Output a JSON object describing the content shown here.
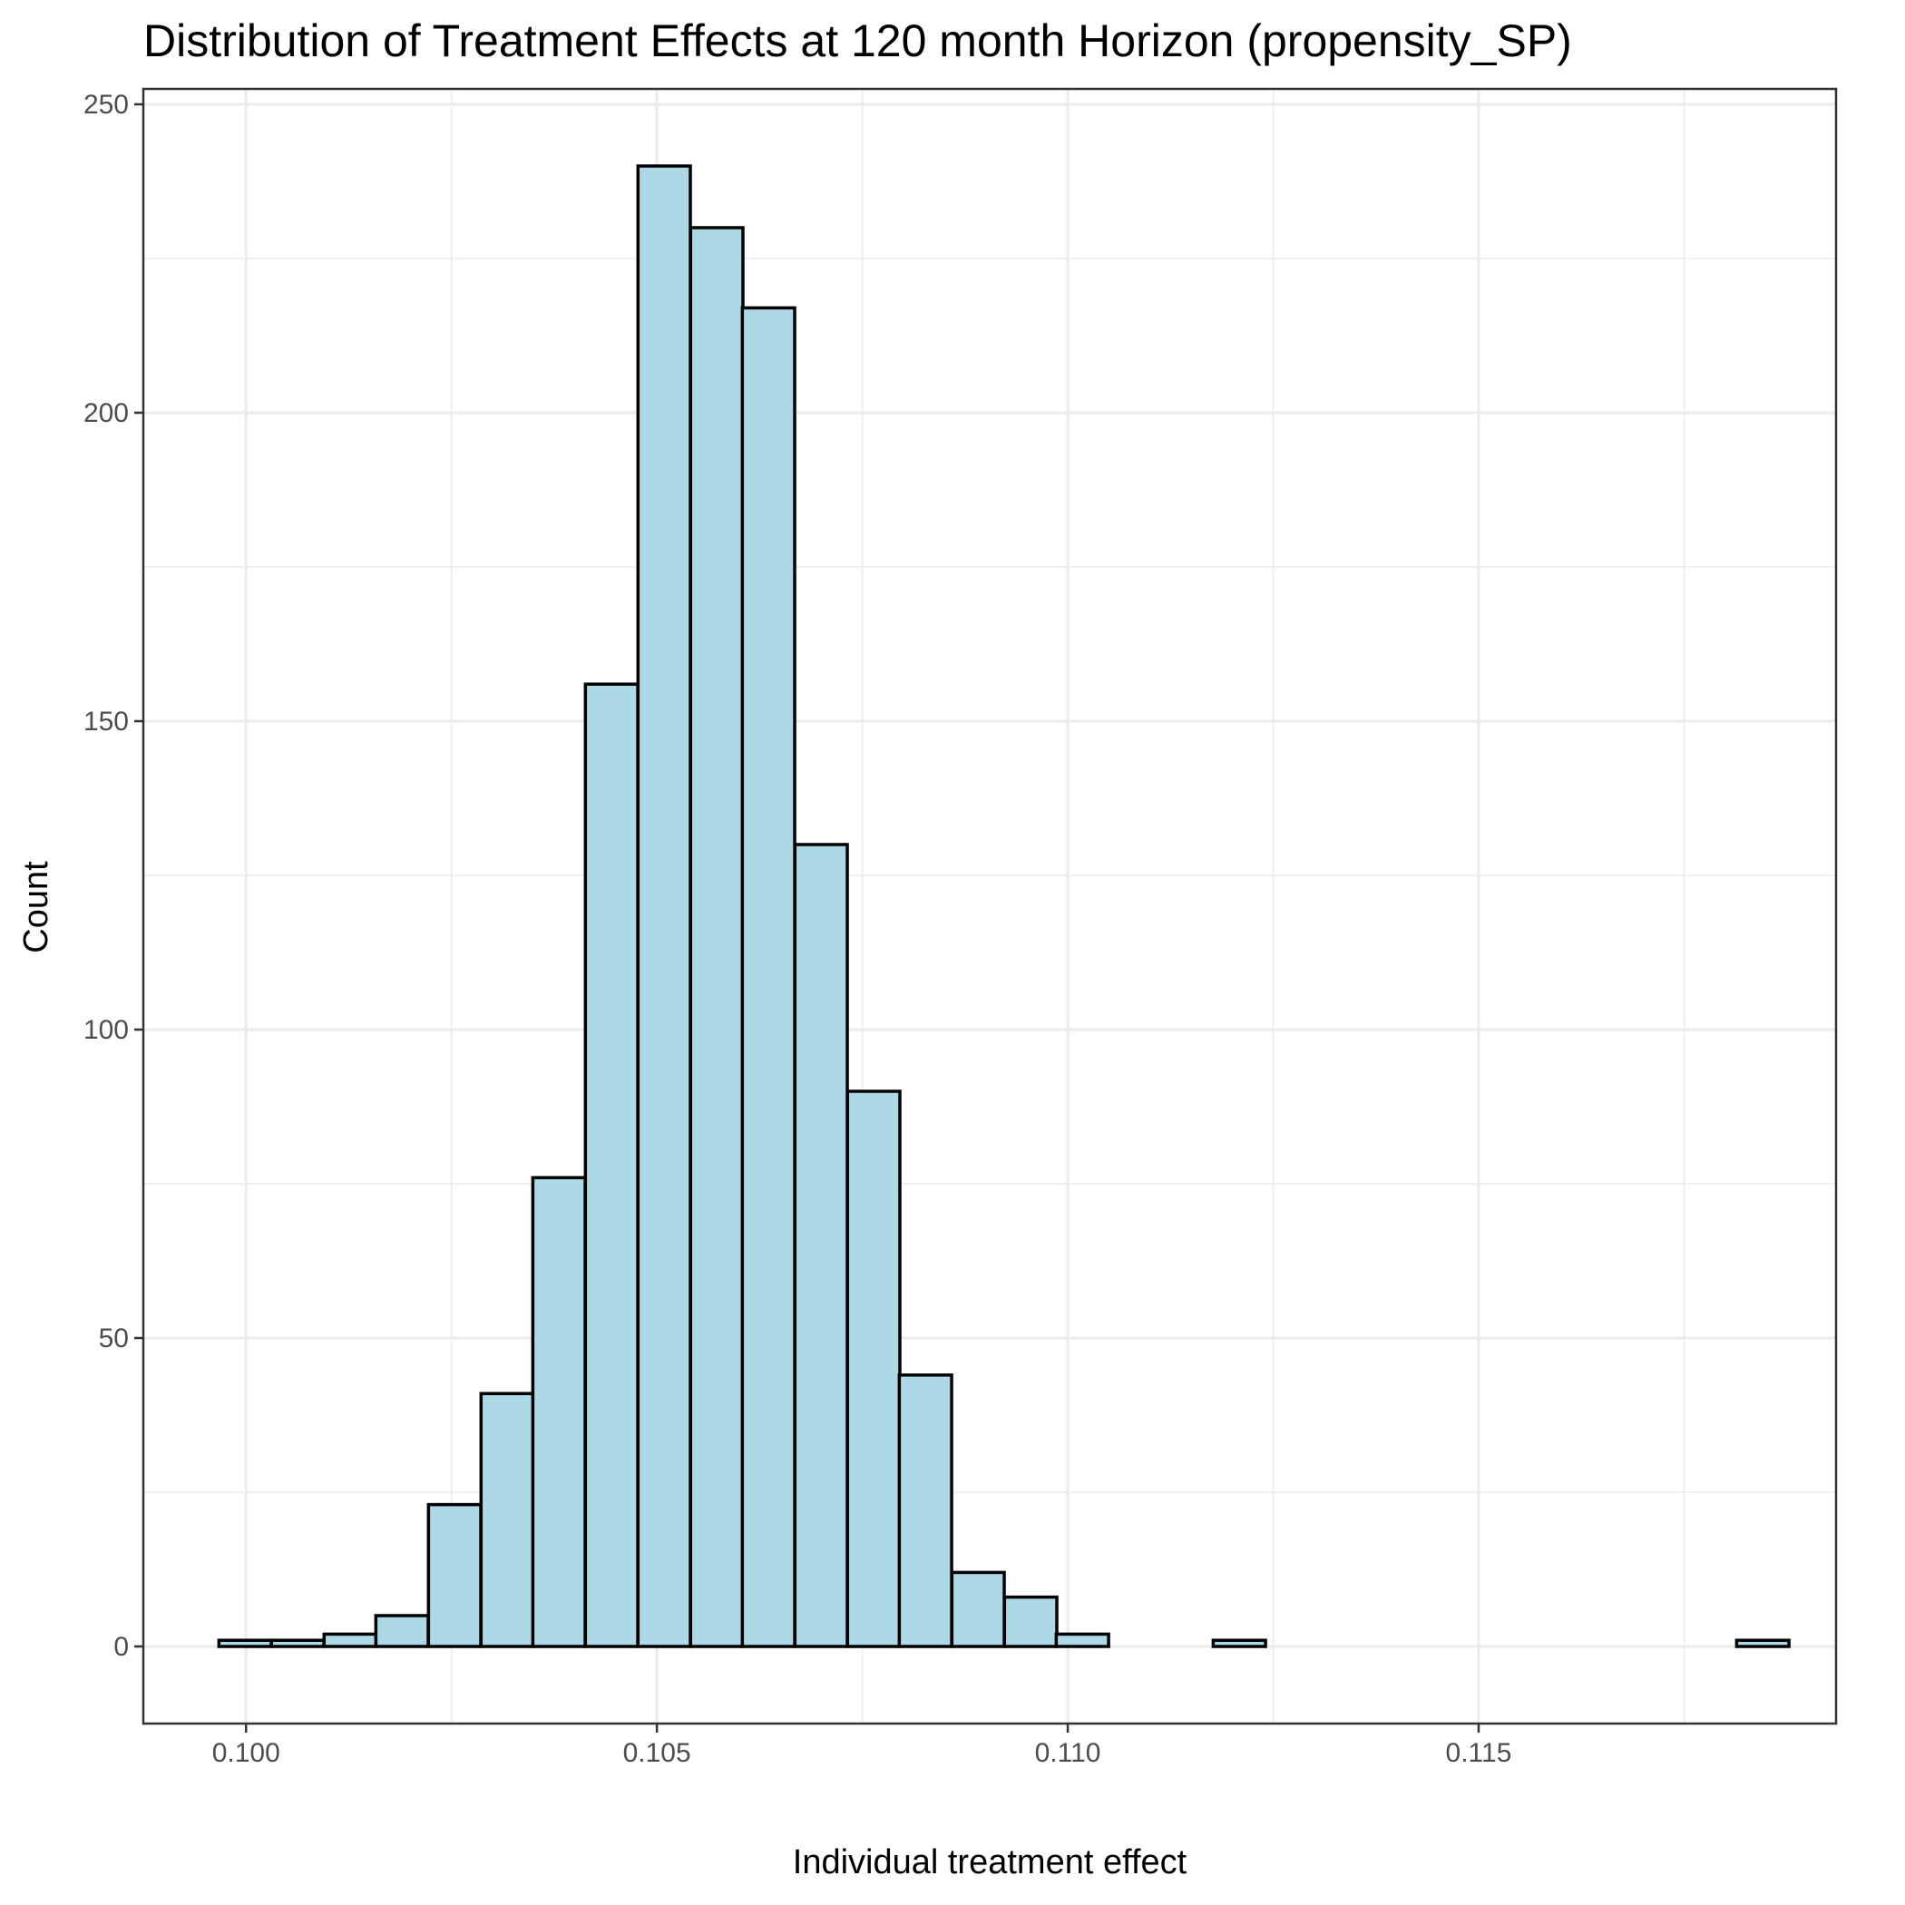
{
  "chart_data": {
    "type": "bar",
    "title": "Distribution of Treatment Effects at 120 month Horizon (propensity_SP)",
    "xlabel": "Individual treatment effect",
    "ylabel": "Count",
    "xlim": [
      0.09875,
      0.11935
    ],
    "ylim": [
      -12.5,
      252.5
    ],
    "x_ticks": [
      {
        "value": 0.1,
        "label": "0.100"
      },
      {
        "value": 0.105,
        "label": "0.105"
      },
      {
        "value": 0.11,
        "label": "0.110"
      },
      {
        "value": 0.115,
        "label": "0.115"
      }
    ],
    "y_ticks": [
      {
        "value": 0,
        "label": "0"
      },
      {
        "value": 50,
        "label": "50"
      },
      {
        "value": 100,
        "label": "100"
      },
      {
        "value": 150,
        "label": "150"
      },
      {
        "value": 200,
        "label": "200"
      },
      {
        "value": 250,
        "label": "250"
      }
    ],
    "x_minor_ticks": [
      0.0975,
      0.1025,
      0.1075,
      0.1125,
      0.1175
    ],
    "y_minor_ticks": [
      25,
      75,
      125,
      175,
      225
    ],
    "grid": true,
    "bin_width": 0.000637,
    "bins": [
      {
        "start": 0.09967,
        "count": 1
      },
      {
        "start": 0.10031,
        "count": 1
      },
      {
        "start": 0.10095,
        "count": 2
      },
      {
        "start": 0.10158,
        "count": 5
      },
      {
        "start": 0.10222,
        "count": 23
      },
      {
        "start": 0.10286,
        "count": 41
      },
      {
        "start": 0.10349,
        "count": 76
      },
      {
        "start": 0.10413,
        "count": 156
      },
      {
        "start": 0.10477,
        "count": 240
      },
      {
        "start": 0.10541,
        "count": 230
      },
      {
        "start": 0.10604,
        "count": 217
      },
      {
        "start": 0.10668,
        "count": 130
      },
      {
        "start": 0.10732,
        "count": 90
      },
      {
        "start": 0.10795,
        "count": 44
      },
      {
        "start": 0.10859,
        "count": 12
      },
      {
        "start": 0.10923,
        "count": 8
      },
      {
        "start": 0.10986,
        "count": 2
      },
      {
        "start": 0.1105,
        "count": 0
      },
      {
        "start": 0.11114,
        "count": 0
      },
      {
        "start": 0.11177,
        "count": 1
      },
      {
        "start": 0.11241,
        "count": 0
      },
      {
        "start": 0.11305,
        "count": 0
      },
      {
        "start": 0.11369,
        "count": 0
      },
      {
        "start": 0.11432,
        "count": 0
      },
      {
        "start": 0.11496,
        "count": 0
      },
      {
        "start": 0.1156,
        "count": 0
      },
      {
        "start": 0.11623,
        "count": 0
      },
      {
        "start": 0.11687,
        "count": 0
      },
      {
        "start": 0.11751,
        "count": 0
      },
      {
        "start": 0.11814,
        "count": 1
      }
    ],
    "colors": {
      "bar_fill": "#add8e6",
      "bar_outline": "#000000",
      "panel_border": "#333333",
      "grid": "#ebebeb"
    }
  }
}
